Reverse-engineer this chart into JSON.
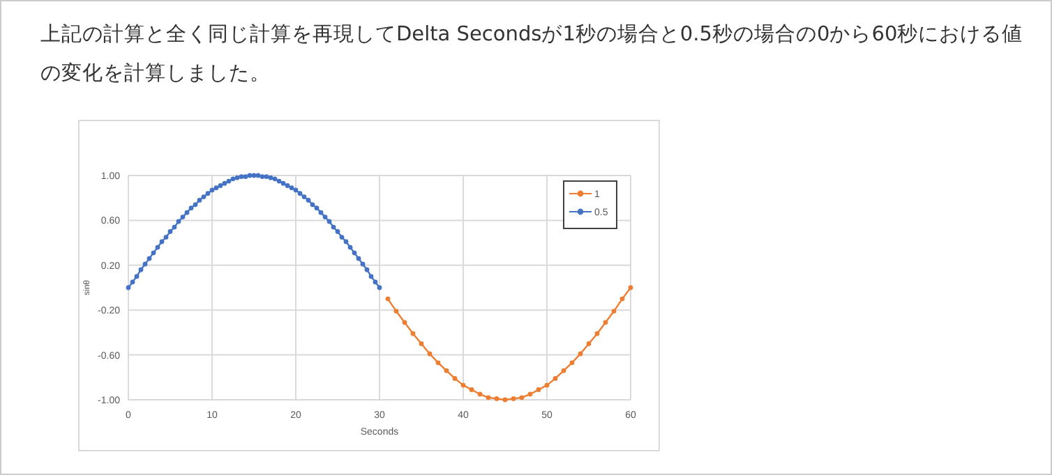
{
  "chart_data": {
    "type": "line",
    "title": "上記の計算と全く同じ計算を再現してDelta Secondsが1秒の場合と0.5秒の場合の0から60秒における値の変化を計算しました。",
    "xlabel": "Seconds",
    "ylabel": "sinθ",
    "xlim": [
      0,
      60
    ],
    "xticks": [
      0,
      10,
      20,
      30,
      40,
      50,
      60
    ],
    "ylim": [
      -1,
      1
    ],
    "yticks": [
      {
        "value": -1,
        "label": "-1.00"
      },
      {
        "value": -0.6,
        "label": "-0.60"
      },
      {
        "value": -0.2,
        "label": "-0.20"
      },
      {
        "value": 0.2,
        "label": "0.20"
      },
      {
        "value": 0.6,
        "label": "0.60"
      },
      {
        "value": 1,
        "label": "1.00"
      }
    ],
    "grid": true,
    "legend": "top right",
    "marker": "circle",
    "line_style": "solid",
    "series": [
      {
        "name": "1",
        "color": "#ed7d31",
        "x": [
          31,
          32,
          33,
          34,
          35,
          36,
          37,
          38,
          39,
          40,
          41,
          42,
          43,
          44,
          45,
          46,
          47,
          48,
          49,
          50,
          51,
          52,
          53,
          54,
          55,
          56,
          57,
          58,
          59,
          60
        ],
        "values": [
          -0.1,
          -0.21,
          -0.31,
          -0.41,
          -0.5,
          -0.59,
          -0.67,
          -0.74,
          -0.81,
          -0.87,
          -0.91,
          -0.95,
          -0.98,
          -0.99,
          -1.0,
          -0.99,
          -0.98,
          -0.95,
          -0.91,
          -0.87,
          -0.81,
          -0.74,
          -0.67,
          -0.59,
          -0.5,
          -0.41,
          -0.31,
          -0.21,
          -0.1,
          0
        ]
      },
      {
        "name": "0.5",
        "color": "#4472c4",
        "x": [
          0,
          0.5,
          1,
          1.5,
          2,
          2.5,
          3,
          3.5,
          4,
          4.5,
          5,
          5.5,
          6,
          6.5,
          7,
          7.5,
          8,
          8.5,
          9,
          9.5,
          10,
          10.5,
          11,
          11.5,
          12,
          12.5,
          13,
          13.5,
          14,
          14.5,
          15,
          15.5,
          16,
          16.5,
          17,
          17.5,
          18,
          18.5,
          19,
          19.5,
          20,
          20.5,
          21,
          21.5,
          22,
          22.5,
          23,
          23.5,
          24,
          24.5,
          25,
          25.5,
          26,
          26.5,
          27,
          27.5,
          28,
          28.5,
          29,
          29.5,
          30
        ],
        "values": [
          0,
          0.05,
          0.1,
          0.16,
          0.21,
          0.26,
          0.31,
          0.36,
          0.41,
          0.45,
          0.5,
          0.54,
          0.59,
          0.63,
          0.67,
          0.71,
          0.74,
          0.78,
          0.81,
          0.84,
          0.87,
          0.89,
          0.91,
          0.93,
          0.95,
          0.97,
          0.98,
          0.99,
          0.99,
          1.0,
          1.0,
          1.0,
          0.99,
          0.99,
          0.98,
          0.97,
          0.95,
          0.93,
          0.91,
          0.89,
          0.87,
          0.84,
          0.81,
          0.78,
          0.74,
          0.71,
          0.67,
          0.63,
          0.59,
          0.54,
          0.5,
          0.45,
          0.41,
          0.36,
          0.31,
          0.26,
          0.21,
          0.16,
          0.1,
          0.05,
          0
        ]
      }
    ]
  }
}
